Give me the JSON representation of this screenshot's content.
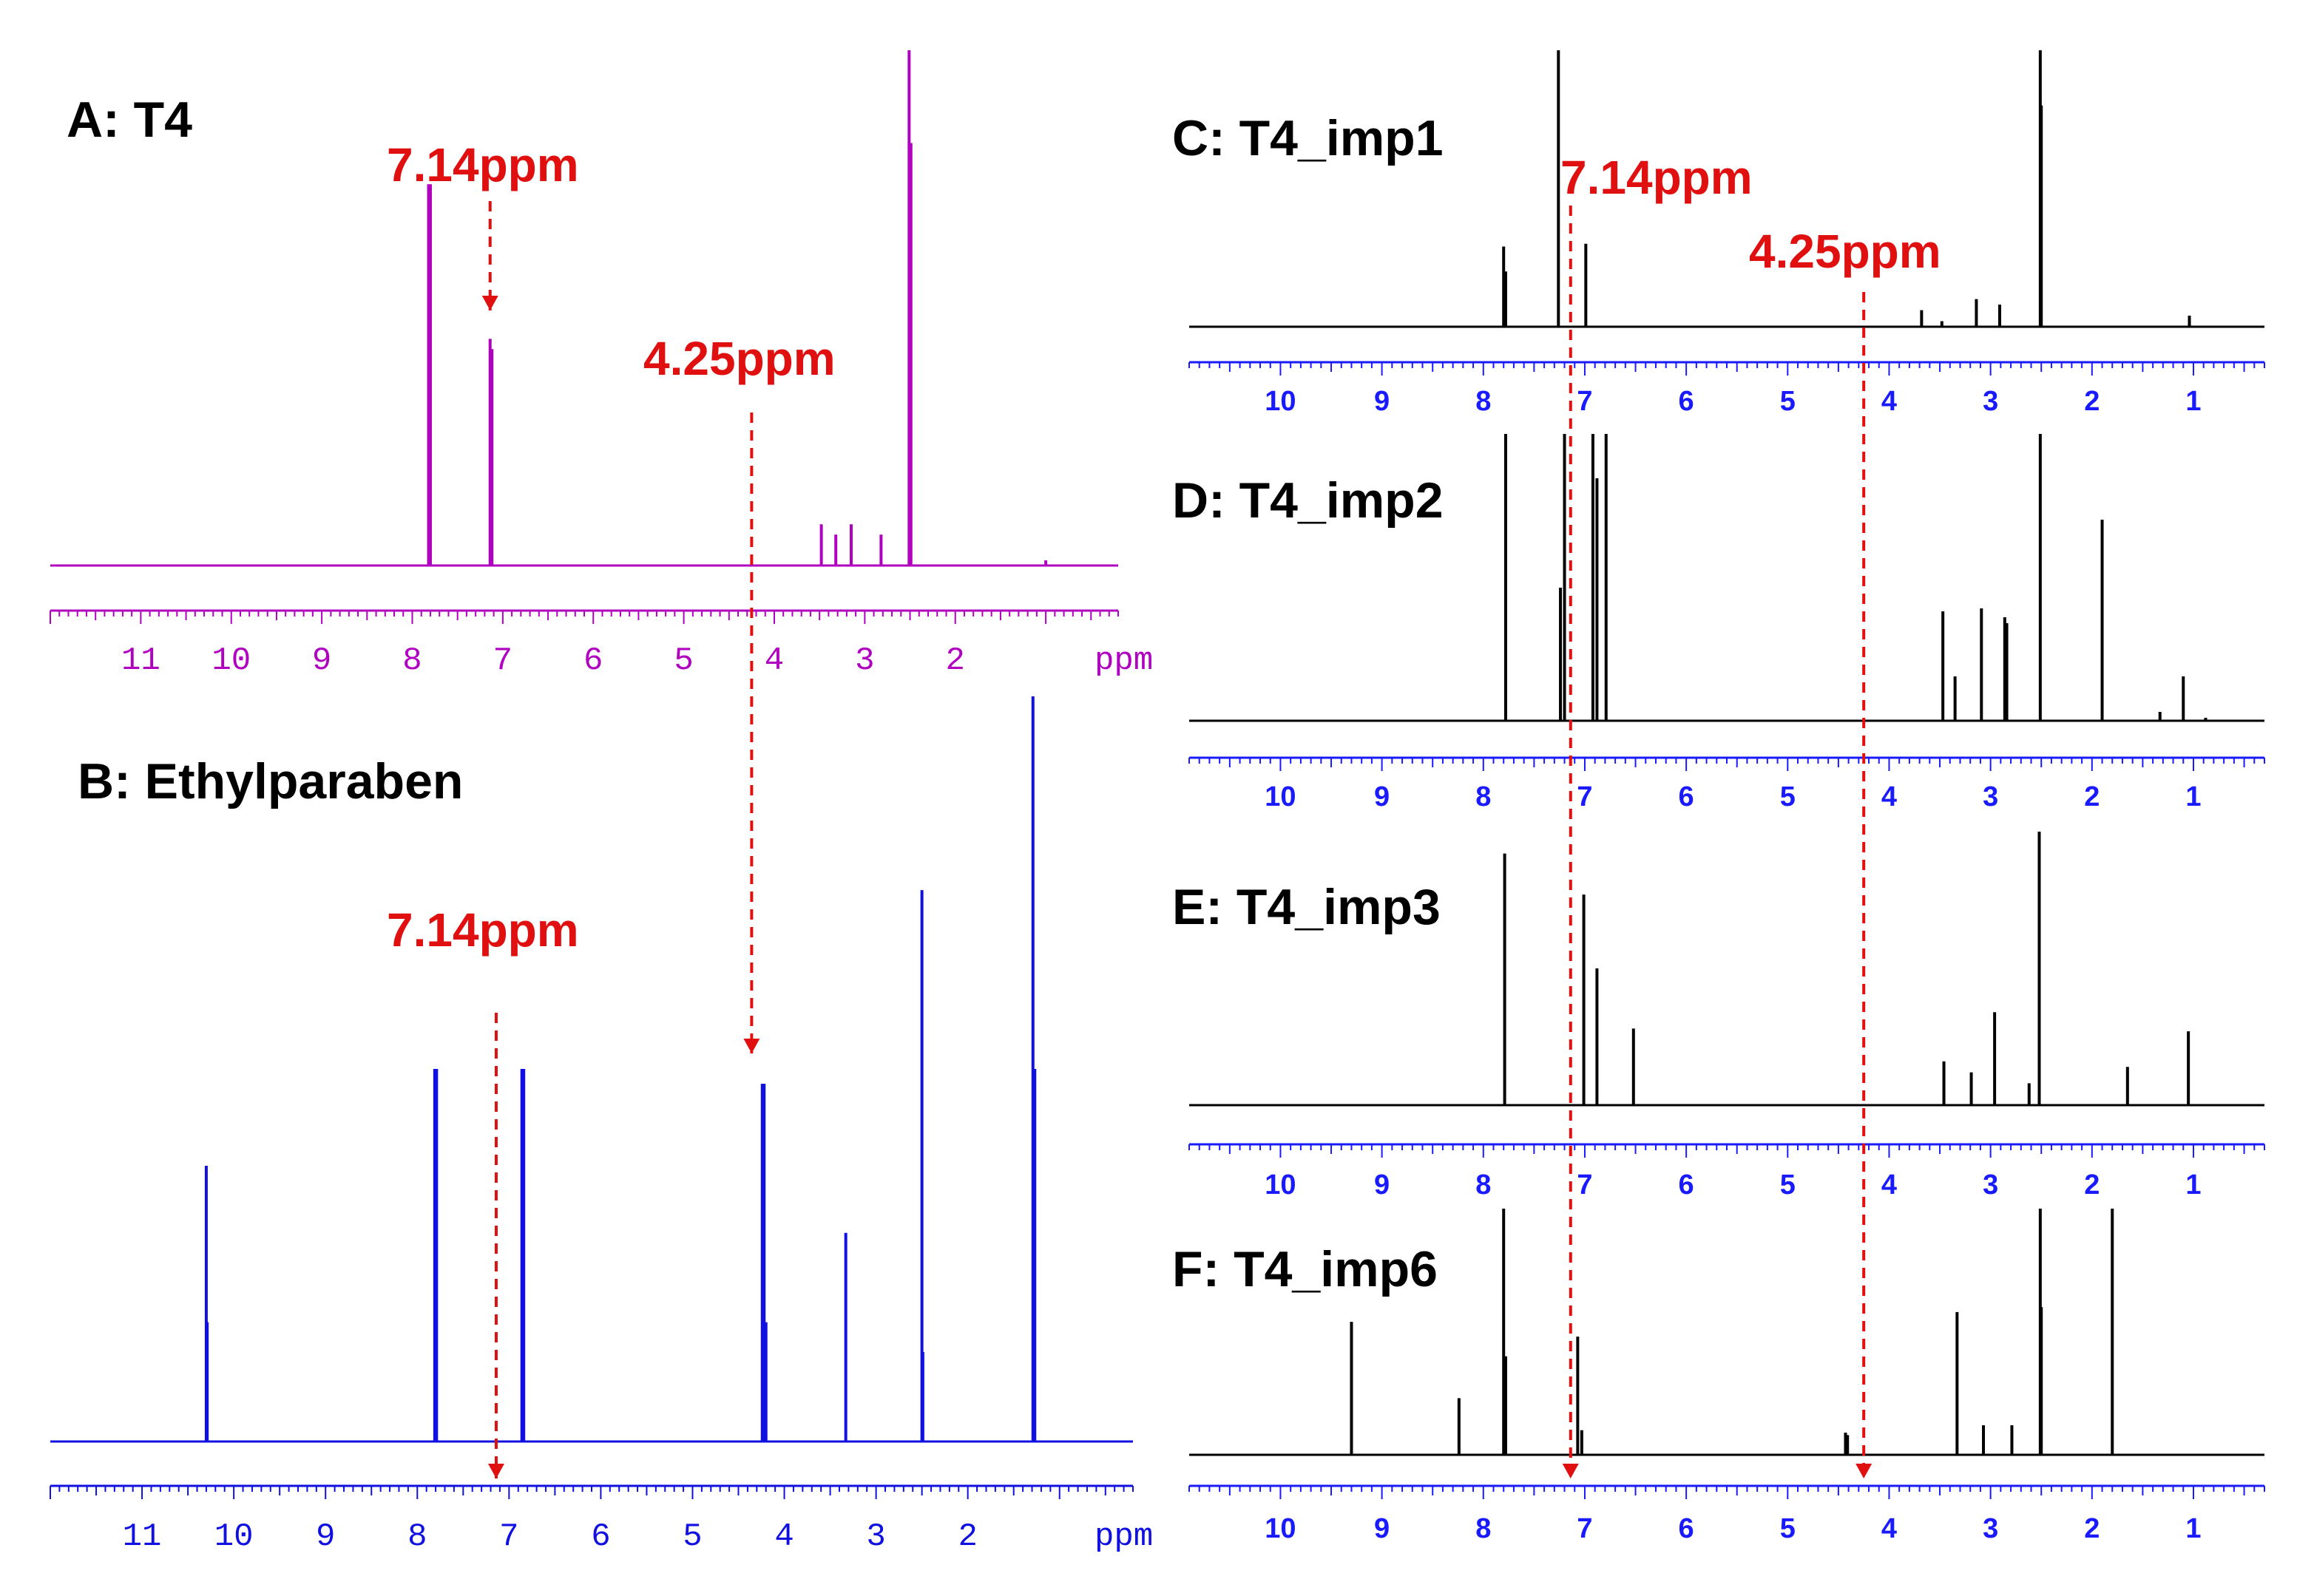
{
  "figure": {
    "annotation_color": "#e01010",
    "guides": [
      {
        "label": "7.14ppm",
        "ppm": 7.14
      },
      {
        "label": "4.25ppm",
        "ppm": 4.25
      }
    ]
  },
  "chart_data": [
    {
      "id": "A",
      "type": "line",
      "title": "A: T4",
      "color": "#b000c0",
      "xlabel": "ppm",
      "xlim": [
        12,
        0.2
      ],
      "ticks": [
        11,
        10,
        9,
        8,
        7,
        6,
        5,
        4,
        3,
        2
      ],
      "peaks": [
        {
          "x": 7.82,
          "y": 0.74
        },
        {
          "x": 7.8,
          "y": 0.74
        },
        {
          "x": 7.14,
          "y": 0.44
        },
        {
          "x": 7.12,
          "y": 0.42
        },
        {
          "x": 3.48,
          "y": 0.08
        },
        {
          "x": 3.32,
          "y": 0.06
        },
        {
          "x": 3.15,
          "y": 0.08
        },
        {
          "x": 2.82,
          "y": 0.06
        },
        {
          "x": 2.51,
          "y": 1.0
        },
        {
          "x": 2.49,
          "y": 0.82
        },
        {
          "x": 1.0,
          "y": 0.01
        }
      ],
      "annotations": [
        {
          "text": "7.14ppm",
          "ppm": 7.14,
          "arrow": "down"
        },
        {
          "text": "4.25ppm",
          "ppm": 4.25,
          "arrow": "none"
        }
      ]
    },
    {
      "id": "B",
      "type": "line",
      "title": "B: Ethylparaben",
      "color": "#1010e0",
      "xlabel": "ppm",
      "xlim": [
        12,
        0.2
      ],
      "ticks": [
        11,
        10,
        9,
        8,
        7,
        6,
        5,
        4,
        3,
        2
      ],
      "peaks": [
        {
          "x": 10.3,
          "y": 0.37
        },
        {
          "x": 10.29,
          "y": 0.16
        },
        {
          "x": 7.81,
          "y": 0.5
        },
        {
          "x": 7.79,
          "y": 0.5
        },
        {
          "x": 6.86,
          "y": 0.5
        },
        {
          "x": 6.84,
          "y": 0.5
        },
        {
          "x": 4.24,
          "y": 0.48
        },
        {
          "x": 4.22,
          "y": 0.48
        },
        {
          "x": 4.2,
          "y": 0.16
        },
        {
          "x": 3.33,
          "y": 0.28
        },
        {
          "x": 2.5,
          "y": 0.74
        },
        {
          "x": 2.49,
          "y": 0.12
        },
        {
          "x": 1.29,
          "y": 1.0
        },
        {
          "x": 1.27,
          "y": 0.5
        }
      ],
      "annotations": [
        {
          "text": "7.14ppm",
          "ppm": 7.14,
          "arrow": "down"
        }
      ]
    },
    {
      "id": "C",
      "type": "line",
      "title": "C: T4_imp1",
      "color": "#000000",
      "xlabel": "",
      "xlim": [
        10.9,
        0.3
      ],
      "ticks": [
        10,
        9,
        8,
        7,
        6,
        5,
        4,
        3,
        2,
        1
      ],
      "peaks": [
        {
          "x": 7.8,
          "y": 0.29
        },
        {
          "x": 7.78,
          "y": 0.2
        },
        {
          "x": 7.26,
          "y": 1.0
        },
        {
          "x": 6.99,
          "y": 0.3
        },
        {
          "x": 3.68,
          "y": 0.06
        },
        {
          "x": 3.48,
          "y": 0.02
        },
        {
          "x": 3.14,
          "y": 0.1
        },
        {
          "x": 2.91,
          "y": 0.08
        },
        {
          "x": 2.51,
          "y": 1.0
        },
        {
          "x": 2.5,
          "y": 0.8
        },
        {
          "x": 1.04,
          "y": 0.04
        }
      ],
      "annotations": [
        {
          "text": "7.14ppm",
          "ppm": 7.14,
          "arrow": "none"
        },
        {
          "text": "4.25ppm",
          "ppm": 4.25,
          "arrow": "none"
        }
      ]
    },
    {
      "id": "D",
      "type": "line",
      "title": "D: T4_imp2",
      "color": "#000000",
      "xlabel": "",
      "xlim": [
        10.9,
        0.3
      ],
      "ticks": [
        10,
        9,
        8,
        7,
        6,
        5,
        4,
        3,
        2,
        1
      ],
      "peaks": [
        {
          "x": 7.78,
          "y": 0.97
        },
        {
          "x": 7.24,
          "y": 0.45
        },
        {
          "x": 7.2,
          "y": 0.97
        },
        {
          "x": 6.92,
          "y": 0.97
        },
        {
          "x": 6.88,
          "y": 0.82
        },
        {
          "x": 6.79,
          "y": 0.97
        },
        {
          "x": 3.47,
          "y": 0.37
        },
        {
          "x": 3.35,
          "y": 0.15
        },
        {
          "x": 3.09,
          "y": 0.38
        },
        {
          "x": 2.86,
          "y": 0.35
        },
        {
          "x": 2.84,
          "y": 0.33
        },
        {
          "x": 2.51,
          "y": 0.97
        },
        {
          "x": 1.9,
          "y": 0.68
        },
        {
          "x": 1.33,
          "y": 0.03
        },
        {
          "x": 1.1,
          "y": 0.15
        },
        {
          "x": 0.88,
          "y": 0.01
        }
      ],
      "annotations": []
    },
    {
      "id": "E",
      "type": "line",
      "title": "E: T4_imp3",
      "color": "#000000",
      "xlabel": "",
      "xlim": [
        10.9,
        0.3
      ],
      "ticks": [
        10,
        9,
        8,
        7,
        6,
        5,
        4,
        3,
        2,
        1
      ],
      "peaks": [
        {
          "x": 7.79,
          "y": 0.92
        },
        {
          "x": 7.01,
          "y": 0.77
        },
        {
          "x": 6.88,
          "y": 0.5
        },
        {
          "x": 6.52,
          "y": 0.28
        },
        {
          "x": 3.46,
          "y": 0.16
        },
        {
          "x": 3.19,
          "y": 0.12
        },
        {
          "x": 2.96,
          "y": 0.34
        },
        {
          "x": 2.62,
          "y": 0.08
        },
        {
          "x": 2.52,
          "y": 1.0
        },
        {
          "x": 1.65,
          "y": 0.14
        },
        {
          "x": 1.05,
          "y": 0.27
        }
      ],
      "annotations": []
    },
    {
      "id": "F",
      "type": "line",
      "title": "F: T4_imp6",
      "color": "#000000",
      "xlabel": "",
      "xlim": [
        10.9,
        0.3
      ],
      "ticks": [
        10,
        9,
        8,
        7,
        6,
        5,
        4,
        3,
        2,
        1
      ],
      "peaks": [
        {
          "x": 9.3,
          "y": 0.54
        },
        {
          "x": 8.24,
          "y": 0.23
        },
        {
          "x": 7.8,
          "y": 1.0
        },
        {
          "x": 7.78,
          "y": 0.4
        },
        {
          "x": 7.07,
          "y": 0.48
        },
        {
          "x": 7.03,
          "y": 0.1
        },
        {
          "x": 4.43,
          "y": 0.09
        },
        {
          "x": 4.41,
          "y": 0.08
        },
        {
          "x": 3.33,
          "y": 0.58
        },
        {
          "x": 3.07,
          "y": 0.12
        },
        {
          "x": 2.79,
          "y": 0.12
        },
        {
          "x": 2.51,
          "y": 1.0
        },
        {
          "x": 2.5,
          "y": 0.6
        },
        {
          "x": 1.8,
          "y": 1.0
        }
      ],
      "annotations": [
        {
          "text": "",
          "ppm": 7.14,
          "arrow": "down"
        },
        {
          "text": "",
          "ppm": 4.25,
          "arrow": "down"
        }
      ]
    }
  ]
}
